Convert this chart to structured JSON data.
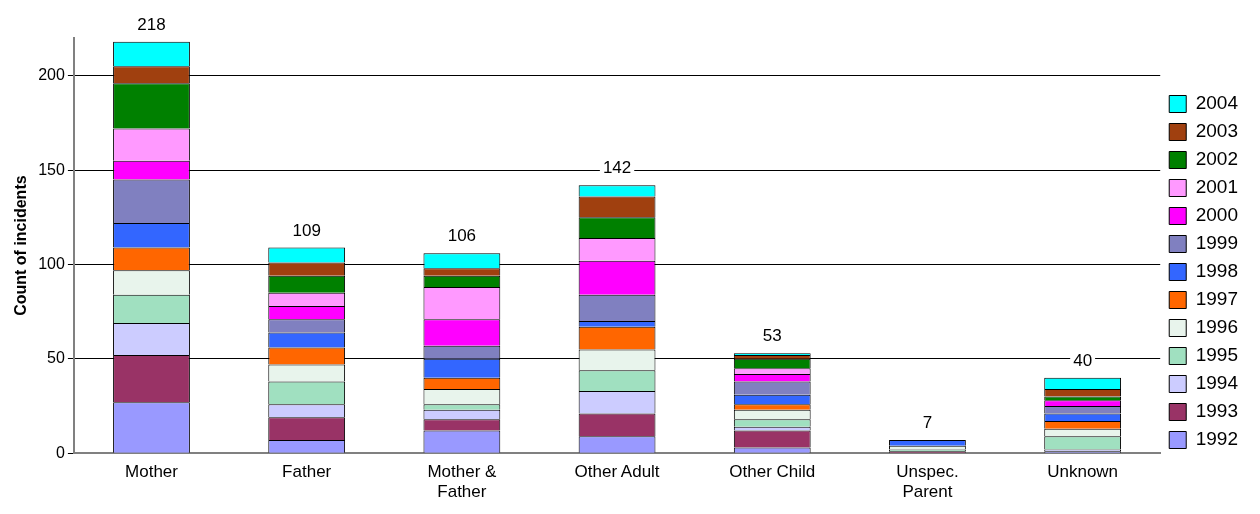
{
  "chart_data": {
    "type": "bar",
    "stacked": true,
    "ylabel": "Count of incidents",
    "categories": [
      "Mother",
      "Father",
      "Mother & Father",
      "Other Adult",
      "Other Child",
      "Unspec. Parent",
      "Unknown"
    ],
    "series": [
      {
        "name": "1992",
        "color": "#9999ff",
        "values": [
          27,
          7,
          12,
          9,
          3,
          0,
          1
        ]
      },
      {
        "name": "1993",
        "color": "#993366",
        "values": [
          25,
          12,
          6,
          12,
          9,
          1,
          0
        ]
      },
      {
        "name": "1994",
        "color": "#ccccff",
        "values": [
          17,
          7,
          5,
          12,
          2,
          0,
          1
        ]
      },
      {
        "name": "1995",
        "color": "#a0e0c0",
        "values": [
          15,
          12,
          3,
          11,
          4,
          1,
          7
        ]
      },
      {
        "name": "1996",
        "color": "#e8f4ec",
        "values": [
          13,
          9,
          8,
          11,
          5,
          2,
          4
        ]
      },
      {
        "name": "1997",
        "color": "#ff6600",
        "values": [
          12,
          9,
          6,
          12,
          3,
          0,
          4
        ]
      },
      {
        "name": "1998",
        "color": "#3366ff",
        "values": [
          13,
          8,
          10,
          3,
          5,
          3,
          4
        ]
      },
      {
        "name": "1999",
        "color": "#8080c0",
        "values": [
          23,
          7,
          7,
          14,
          7,
          0,
          4
        ]
      },
      {
        "name": "2000",
        "color": "#ff00ff",
        "values": [
          10,
          7,
          14,
          18,
          4,
          0,
          3
        ]
      },
      {
        "name": "2001",
        "color": "#ff99ff",
        "values": [
          17,
          7,
          17,
          12,
          3,
          0,
          null
        ]
      },
      {
        "name": "2002",
        "color": "#008000",
        "values": [
          24,
          9,
          6,
          11,
          5,
          0,
          2
        ]
      },
      {
        "name": "2003",
        "color": "#a0400f",
        "values": [
          9,
          7,
          4,
          11,
          2,
          0,
          4
        ]
      },
      {
        "name": "2004",
        "color": "#00ffff",
        "values": [
          13,
          8,
          8,
          6,
          1,
          0,
          6
        ]
      }
    ],
    "totals": [
      "218",
      "109",
      "106",
      "142",
      "53",
      "7",
      "40"
    ],
    "ylim": [
      0,
      220
    ],
    "yticks": [
      0,
      50,
      100,
      150,
      200
    ],
    "grid": "y",
    "legend": "right"
  }
}
